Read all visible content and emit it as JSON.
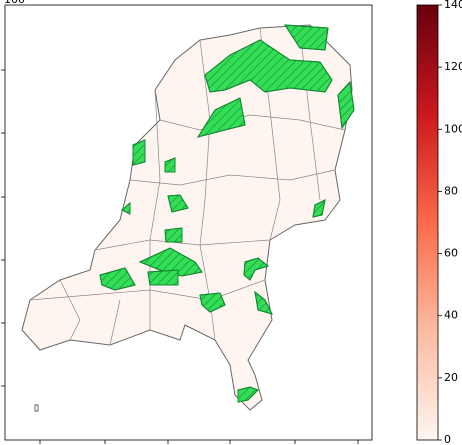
{
  "chart_data": {
    "type": "map",
    "clipped_axis_label": "100",
    "region_color": "#fff5f0",
    "highlight_color": "#33dd55",
    "colorbar": {
      "lim": [
        0,
        140
      ],
      "ticks": [
        0,
        20,
        40,
        60,
        80,
        100,
        120,
        140
      ],
      "colormap": [
        "#fff5f0",
        "#fcbba1",
        "#fb6a4a",
        "#cb181d",
        "#67000d"
      ]
    }
  }
}
